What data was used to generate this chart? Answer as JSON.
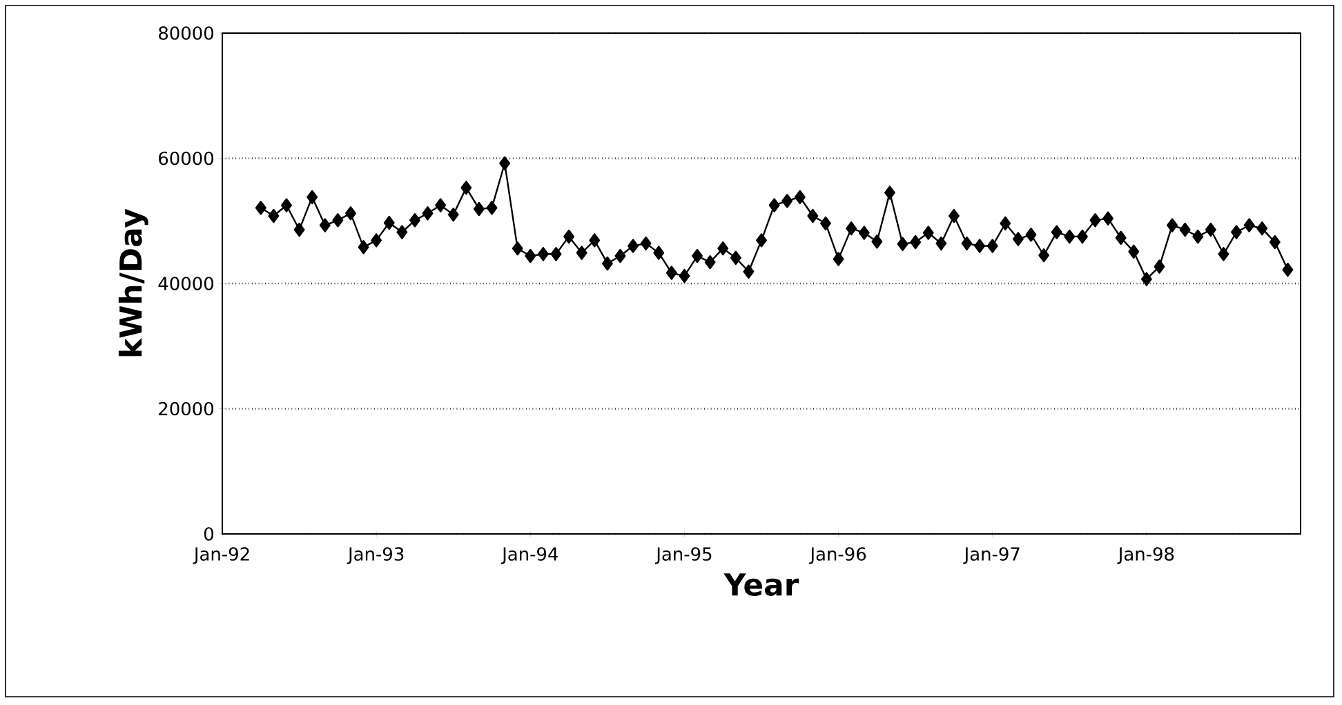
{
  "chart_data": {
    "type": "line",
    "xlabel": "Year",
    "ylabel": "kWh/Day",
    "x": [
      "1992-04",
      "1992-05",
      "1992-06",
      "1992-07",
      "1992-08",
      "1992-09",
      "1992-10",
      "1992-11",
      "1992-12",
      "1993-01",
      "1993-02",
      "1993-03",
      "1993-04",
      "1993-05",
      "1993-06",
      "1993-07",
      "1993-08",
      "1993-09",
      "1993-10",
      "1993-11",
      "1993-12",
      "1994-01",
      "1994-02",
      "1994-03",
      "1994-04",
      "1994-05",
      "1994-06",
      "1994-07",
      "1994-08",
      "1994-09",
      "1994-10",
      "1994-11",
      "1994-12",
      "1995-01",
      "1995-02",
      "1995-03",
      "1995-04",
      "1995-05",
      "1995-06",
      "1995-07",
      "1995-08",
      "1995-09",
      "1995-10",
      "1995-11",
      "1995-12",
      "1996-01",
      "1996-02",
      "1996-03",
      "1996-04",
      "1996-05",
      "1996-06",
      "1996-07",
      "1996-08",
      "1996-09",
      "1996-10",
      "1996-11",
      "1996-12",
      "1997-01",
      "1997-02",
      "1997-03",
      "1997-04",
      "1997-05",
      "1997-06",
      "1997-07",
      "1997-08",
      "1997-09",
      "1997-10",
      "1997-11",
      "1997-12",
      "1998-01",
      "1998-02",
      "1998-03",
      "1998-04",
      "1998-05",
      "1998-06",
      "1998-07",
      "1998-08",
      "1998-09",
      "1998-10",
      "1998-11",
      "1998-12"
    ],
    "series": [
      {
        "color": "#000000",
        "values": [
          52100,
          50800,
          52500,
          48600,
          53800,
          49300,
          50100,
          51200,
          45800,
          46900,
          49700,
          48200,
          50100,
          51200,
          52500,
          51000,
          55300,
          51900,
          52100,
          59200,
          45600,
          44400,
          44700,
          44700,
          47500,
          44900,
          46900,
          43200,
          44400,
          46000,
          46400,
          44900,
          41700,
          41200,
          44400,
          43400,
          45600,
          44100,
          41900,
          46900,
          52500,
          53200,
          53800,
          50800,
          49600,
          43900,
          48800,
          48100,
          46700,
          54500,
          46300,
          46600,
          48100,
          46400,
          50800,
          46400,
          46000,
          46000,
          49600,
          47100,
          47800,
          44500,
          48200,
          47500,
          47500,
          50100,
          50400,
          47300,
          45100,
          40700,
          42700,
          49300,
          48600,
          47500,
          48600,
          44700,
          48200,
          49300,
          48800,
          46600,
          42200
        ]
      }
    ],
    "xlim": [
      "1992-01",
      "1999-01"
    ],
    "xticks": [
      {
        "value": "1992-01",
        "label": "Jan-92"
      },
      {
        "value": "1993-01",
        "label": "Jan-93"
      },
      {
        "value": "1994-01",
        "label": "Jan-94"
      },
      {
        "value": "1995-01",
        "label": "Jan-95"
      },
      {
        "value": "1996-01",
        "label": "Jan-96"
      },
      {
        "value": "1997-01",
        "label": "Jan-97"
      },
      {
        "value": "1998-01",
        "label": "Jan-98"
      }
    ],
    "ylim": [
      0,
      80000
    ],
    "yticks": [
      0,
      20000,
      40000,
      60000,
      80000
    ],
    "grid": "y",
    "marker": "diamond",
    "line_style": "solid"
  }
}
